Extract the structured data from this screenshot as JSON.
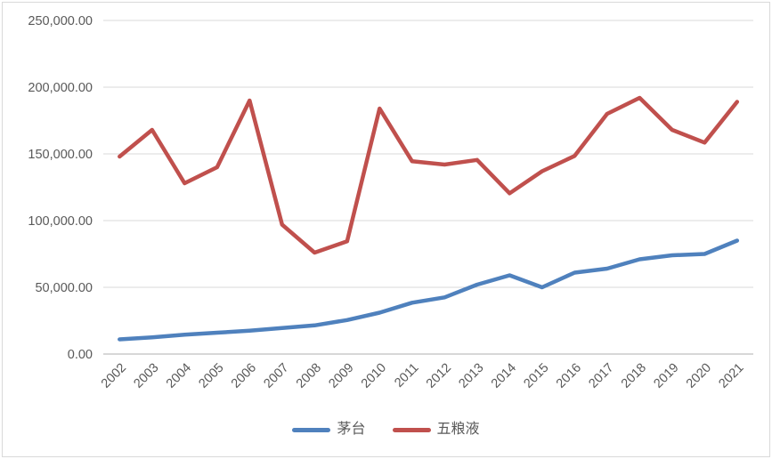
{
  "chart": {
    "background": "#FFFFFF",
    "border_color": "#D9D9D9",
    "gridline_color": "#D9D9D9",
    "axis_line_color": "#BFBFBF",
    "tick_label_color": "#595959",
    "legend": {
      "items": [
        {
          "label": "茅台",
          "color": "#4F81BD"
        },
        {
          "label": "五粮液",
          "color": "#C0504D"
        }
      ]
    }
  },
  "chart_data": {
    "type": "line",
    "title": "",
    "xlabel": "",
    "ylabel": "",
    "categories": [
      "2002",
      "2003",
      "2004",
      "2005",
      "2006",
      "2007",
      "2008",
      "2009",
      "2010",
      "2011",
      "2012",
      "2013",
      "2014",
      "2015",
      "2016",
      "2017",
      "2018",
      "2019",
      "2020",
      "2021"
    ],
    "series": [
      {
        "name": "茅台",
        "color": "#4F81BD",
        "values": [
          11000,
          12500,
          14500,
          16000,
          17500,
          19500,
          21500,
          25500,
          31000,
          38500,
          42500,
          52000,
          59000,
          50000,
          61000,
          64000,
          71000,
          74000,
          75000,
          85000
        ]
      },
      {
        "name": "五粮液",
        "color": "#C0504D",
        "values": [
          148000,
          168000,
          128000,
          140000,
          190000,
          97000,
          76000,
          84500,
          184000,
          144500,
          142000,
          145500,
          120500,
          137000,
          148500,
          180000,
          192000,
          168000,
          158500,
          189000
        ]
      }
    ],
    "ylim": [
      0,
      250000
    ],
    "y_ticks": [
      0,
      50000,
      100000,
      150000,
      200000,
      250000
    ],
    "y_tick_labels": [
      "0.00",
      "50,000.00",
      "100,000.00",
      "150,000.00",
      "200,000.00",
      "250,000.00"
    ],
    "grid": true,
    "legend_position": "bottom",
    "x_tick_rotation": -45
  }
}
